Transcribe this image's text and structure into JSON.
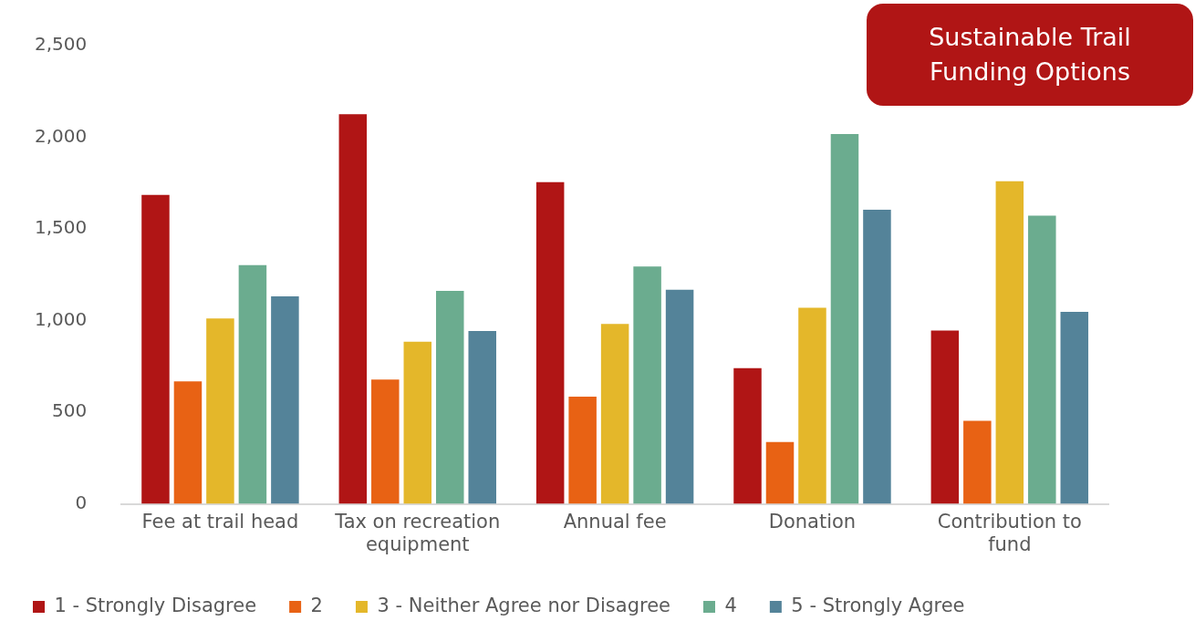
{
  "chart_data": {
    "type": "bar",
    "title": "Sustainable Trail Funding Options",
    "categories": [
      "Fee at trail head",
      "Tax on recreation equipment",
      "Annual fee",
      "Donation",
      "Contribution to fund"
    ],
    "series": [
      {
        "name": "1 - Strongly Disagree",
        "color": "#b01515",
        "values": [
          1686,
          2126,
          1755,
          740,
          945
        ]
      },
      {
        "name": "2",
        "color": "#e86214",
        "values": [
          668,
          678,
          585,
          338,
          453
        ]
      },
      {
        "name": "3 - Neither Agree nor Disagree",
        "color": "#e4b72a",
        "values": [
          1012,
          885,
          982,
          1070,
          1760
        ]
      },
      {
        "name": "4",
        "color": "#6bac8f",
        "values": [
          1302,
          1162,
          1295,
          2018,
          1572
        ]
      },
      {
        "name": "5 - Strongly Agree",
        "color": "#548399",
        "values": [
          1132,
          943,
          1168,
          1605,
          1048
        ]
      }
    ],
    "ylim": [
      0,
      2500
    ],
    "yticks": [
      {
        "value": 0,
        "label": "0"
      },
      {
        "value": 500,
        "label": "500"
      },
      {
        "value": 1000,
        "label": "1,000"
      },
      {
        "value": 1500,
        "label": "1,500"
      },
      {
        "value": 2000,
        "label": "2,000"
      },
      {
        "value": 2500,
        "label": "2,500"
      }
    ],
    "grid": false,
    "legend": "bottom"
  }
}
